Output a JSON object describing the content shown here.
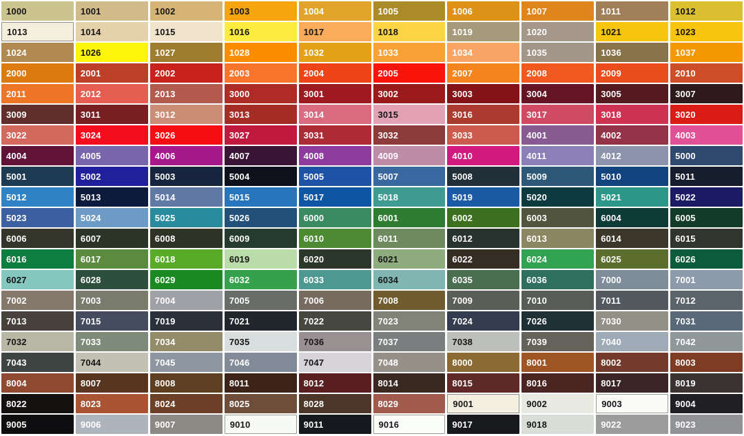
{
  "chart_data": {
    "type": "table",
    "title": "RAL colour chart",
    "columns": 10,
    "rows": 21,
    "cells": [
      {
        "c": "1000",
        "bg": "#CBC48E",
        "fg": "#161616"
      },
      {
        "c": "1001",
        "bg": "#D1BB8B",
        "fg": "#161616"
      },
      {
        "c": "1002",
        "bg": "#D6B476",
        "fg": "#161616"
      },
      {
        "c": "1003",
        "bg": "#F6A50F",
        "fg": "#161616"
      },
      {
        "c": "1004",
        "bg": "#E2A32B",
        "fg": "#FFFFFF"
      },
      {
        "c": "1005",
        "bg": "#AB8A28",
        "fg": "#FFFFFF"
      },
      {
        "c": "1006",
        "bg": "#DD9217",
        "fg": "#FFFFFF"
      },
      {
        "c": "1007",
        "bg": "#E0851B",
        "fg": "#FFFFFF"
      },
      {
        "c": "1011",
        "bg": "#A17F58",
        "fg": "#FFFFFF"
      },
      {
        "c": "1012",
        "bg": "#DCBE31",
        "fg": "#161616"
      },
      {
        "c": "1013",
        "bg": "#F4EFDC",
        "fg": "#161616",
        "bd": "#8F8F88"
      },
      {
        "c": "1014",
        "bg": "#E5D2AC",
        "fg": "#161616"
      },
      {
        "c": "1015",
        "bg": "#F0E4CD",
        "fg": "#161616"
      },
      {
        "c": "1016",
        "bg": "#FBEC3F",
        "fg": "#161616"
      },
      {
        "c": "1017",
        "bg": "#FAAC5A",
        "fg": "#161616"
      },
      {
        "c": "1018",
        "bg": "#FBD446",
        "fg": "#161616"
      },
      {
        "c": "1019",
        "bg": "#A59B7B",
        "fg": "#FFFFFF"
      },
      {
        "c": "1020",
        "bg": "#A6978B",
        "fg": "#FFFFFF"
      },
      {
        "c": "1021",
        "bg": "#F8C50E",
        "fg": "#161616"
      },
      {
        "c": "1023",
        "bg": "#F8C40D",
        "fg": "#161616"
      },
      {
        "c": "1024",
        "bg": "#B08A51",
        "fg": "#FFFFFF"
      },
      {
        "c": "1026",
        "bg": "#FCF40A",
        "fg": "#161616"
      },
      {
        "c": "1027",
        "bg": "#9E7D2F",
        "fg": "#FFFFFF"
      },
      {
        "c": "1028",
        "bg": "#FB8E00",
        "fg": "#FFFFFF"
      },
      {
        "c": "1032",
        "bg": "#E3A117",
        "fg": "#FFFFFF"
      },
      {
        "c": "1033",
        "bg": "#F8A136",
        "fg": "#FFFFFF"
      },
      {
        "c": "1034",
        "bg": "#F8A465",
        "fg": "#FFFFFF"
      },
      {
        "c": "1035",
        "bg": "#A29789",
        "fg": "#FFFFFF"
      },
      {
        "c": "1036",
        "bg": "#887349",
        "fg": "#FFFFFF"
      },
      {
        "c": "1037",
        "bg": "#F39801",
        "fg": "#FFFFFF"
      },
      {
        "c": "2000",
        "bg": "#DD7B10",
        "fg": "#FFFFFF"
      },
      {
        "c": "2001",
        "bg": "#BE3F28",
        "fg": "#FFFFFF"
      },
      {
        "c": "2002",
        "bg": "#C9211C",
        "fg": "#FFFFFF"
      },
      {
        "c": "2003",
        "bg": "#F8752C",
        "fg": "#FFFFFF"
      },
      {
        "c": "2004",
        "bg": "#EE4418",
        "fg": "#FFFFFF"
      },
      {
        "c": "2005",
        "bg": "#FA150C",
        "fg": "#FFFFFF"
      },
      {
        "c": "2007",
        "bg": "#F3841E",
        "fg": "#FFFFFF"
      },
      {
        "c": "2008",
        "bg": "#F05A20",
        "fg": "#FFFFFF"
      },
      {
        "c": "2009",
        "bg": "#EA4C1C",
        "fg": "#FFFFFF"
      },
      {
        "c": "2010",
        "bg": "#CE4F27",
        "fg": "#FFFFFF"
      },
      {
        "c": "2011",
        "bg": "#EE7626",
        "fg": "#FFFFFF"
      },
      {
        "c": "2012",
        "bg": "#E55E51",
        "fg": "#FFFFFF"
      },
      {
        "c": "2013",
        "bg": "#B15A4D",
        "fg": "#FFFFFF"
      },
      {
        "c": "3000",
        "bg": "#AF2B26",
        "fg": "#FFFFFF"
      },
      {
        "c": "3001",
        "bg": "#9E1A20",
        "fg": "#FFFFFF"
      },
      {
        "c": "3002",
        "bg": "#9B1B1C",
        "fg": "#FFFFFF"
      },
      {
        "c": "3003",
        "bg": "#841318",
        "fg": "#FFFFFF"
      },
      {
        "c": "3004",
        "bg": "#641425",
        "fg": "#FFFFFF"
      },
      {
        "c": "3005",
        "bg": "#541A20",
        "fg": "#FFFFFF"
      },
      {
        "c": "3007",
        "bg": "#2E191D",
        "fg": "#FFFFFF"
      },
      {
        "c": "3009",
        "bg": "#602F2C",
        "fg": "#FFFFFF"
      },
      {
        "c": "3011",
        "bg": "#781F22",
        "fg": "#FFFFFF"
      },
      {
        "c": "3012",
        "bg": "#CB8D76",
        "fg": "#FFFFFF"
      },
      {
        "c": "3013",
        "bg": "#A62C26",
        "fg": "#FFFFFF"
      },
      {
        "c": "3014",
        "bg": "#D96A80",
        "fg": "#FFFFFF"
      },
      {
        "c": "3015",
        "bg": "#E2A1B4",
        "fg": "#161616"
      },
      {
        "c": "3016",
        "bg": "#AA3B2E",
        "fg": "#FFFFFF"
      },
      {
        "c": "3017",
        "bg": "#D14A64",
        "fg": "#FFFFFF"
      },
      {
        "c": "3018",
        "bg": "#CF3351",
        "fg": "#FFFFFF"
      },
      {
        "c": "3020",
        "bg": "#DB1C16",
        "fg": "#FFFFFF"
      },
      {
        "c": "3022",
        "bg": "#D4685C",
        "fg": "#FFFFFF"
      },
      {
        "c": "3024",
        "bg": "#F30D1D",
        "fg": "#FFFFFF"
      },
      {
        "c": "3026",
        "bg": "#F40D12",
        "fg": "#FFFFFF"
      },
      {
        "c": "3027",
        "bg": "#C01A3F",
        "fg": "#FFFFFF"
      },
      {
        "c": "3031",
        "bg": "#AC2B35",
        "fg": "#FFFFFF"
      },
      {
        "c": "3032",
        "bg": "#8E3C3B",
        "fg": "#FFFFFF"
      },
      {
        "c": "3033",
        "bg": "#CB5C4D",
        "fg": "#FFFFFF"
      },
      {
        "c": "4001",
        "bg": "#875A92",
        "fg": "#FFFFFF"
      },
      {
        "c": "4002",
        "bg": "#943348",
        "fg": "#FFFFFF"
      },
      {
        "c": "4003",
        "bg": "#E05295",
        "fg": "#FFFFFF"
      },
      {
        "c": "4004",
        "bg": "#601237",
        "fg": "#FFFFFF"
      },
      {
        "c": "4005",
        "bg": "#7866AC",
        "fg": "#FFFFFF"
      },
      {
        "c": "4006",
        "bg": "#A8188D",
        "fg": "#FFFFFF"
      },
      {
        "c": "4007",
        "bg": "#3B1536",
        "fg": "#FFFFFF"
      },
      {
        "c": "4008",
        "bg": "#8D3C9E",
        "fg": "#FFFFFF"
      },
      {
        "c": "4009",
        "bg": "#BD8CA6",
        "fg": "#FFFFFF"
      },
      {
        "c": "4010",
        "bg": "#D2197E",
        "fg": "#FFFFFF"
      },
      {
        "c": "4011",
        "bg": "#8A7FB7",
        "fg": "#FFFFFF"
      },
      {
        "c": "4012",
        "bg": "#8C93AC",
        "fg": "#FFFFFF"
      },
      {
        "c": "5000",
        "bg": "#30496E",
        "fg": "#FFFFFF"
      },
      {
        "c": "5001",
        "bg": "#1D3B52",
        "fg": "#FFFFFF"
      },
      {
        "c": "5002",
        "bg": "#20209C",
        "fg": "#FFFFFF"
      },
      {
        "c": "5003",
        "bg": "#18253E",
        "fg": "#FFFFFF"
      },
      {
        "c": "5004",
        "bg": "#0E111C",
        "fg": "#FFFFFF"
      },
      {
        "c": "5005",
        "bg": "#1E52A5",
        "fg": "#FFFFFF"
      },
      {
        "c": "5007",
        "bg": "#3A68A0",
        "fg": "#FFFFFF"
      },
      {
        "c": "5008",
        "bg": "#212F38",
        "fg": "#FFFFFF"
      },
      {
        "c": "5009",
        "bg": "#2E5878",
        "fg": "#FFFFFF"
      },
      {
        "c": "5010",
        "bg": "#11437E",
        "fg": "#FFFFFF"
      },
      {
        "c": "5011",
        "bg": "#161D2C",
        "fg": "#FFFFFF"
      },
      {
        "c": "5012",
        "bg": "#2F83C4",
        "fg": "#FFFFFF"
      },
      {
        "c": "5013",
        "bg": "#0C1A3C",
        "fg": "#FFFFFF"
      },
      {
        "c": "5014",
        "bg": "#6079A5",
        "fg": "#FFFFFF"
      },
      {
        "c": "5015",
        "bg": "#2775BC",
        "fg": "#FFFFFF"
      },
      {
        "c": "5017",
        "bg": "#0E56A4",
        "fg": "#FFFFFF"
      },
      {
        "c": "5018",
        "bg": "#3F9C93",
        "fg": "#FFFFFF"
      },
      {
        "c": "5019",
        "bg": "#1B5BA6",
        "fg": "#FFFFFF"
      },
      {
        "c": "5020",
        "bg": "#0D3A3E",
        "fg": "#FFFFFF"
      },
      {
        "c": "5021",
        "bg": "#2C9789",
        "fg": "#FFFFFF"
      },
      {
        "c": "5022",
        "bg": "#1C1C66",
        "fg": "#FFFFFF"
      },
      {
        "c": "5023",
        "bg": "#3D60A0",
        "fg": "#FFFFFF"
      },
      {
        "c": "5024",
        "bg": "#6C9BC6",
        "fg": "#FFFFFF"
      },
      {
        "c": "5025",
        "bg": "#2A8A9E",
        "fg": "#FFFFFF"
      },
      {
        "c": "5026",
        "bg": "#215078",
        "fg": "#FFFFFF"
      },
      {
        "c": "6000",
        "bg": "#3C8A62",
        "fg": "#FFFFFF"
      },
      {
        "c": "6001",
        "bg": "#2E7D33",
        "fg": "#FFFFFF"
      },
      {
        "c": "6002",
        "bg": "#3D701F",
        "fg": "#FFFFFF"
      },
      {
        "c": "6003",
        "bg": "#52553E",
        "fg": "#FFFFFF"
      },
      {
        "c": "6004",
        "bg": "#0E3A38",
        "fg": "#FFFFFF"
      },
      {
        "c": "6005",
        "bg": "#123B29",
        "fg": "#FFFFFF"
      },
      {
        "c": "6006",
        "bg": "#34362C",
        "fg": "#FFFFFF"
      },
      {
        "c": "6007",
        "bg": "#2A3527",
        "fg": "#FFFFFF"
      },
      {
        "c": "6008",
        "bg": "#2F3326",
        "fg": "#FFFFFF"
      },
      {
        "c": "6009",
        "bg": "#263B30",
        "fg": "#FFFFFF"
      },
      {
        "c": "6010",
        "bg": "#4D8A32",
        "fg": "#FFFFFF"
      },
      {
        "c": "6011",
        "bg": "#6D8B5E",
        "fg": "#FFFFFF"
      },
      {
        "c": "6012",
        "bg": "#27332F",
        "fg": "#FFFFFF"
      },
      {
        "c": "6013",
        "bg": "#8C8763",
        "fg": "#FFFFFF"
      },
      {
        "c": "6014",
        "bg": "#3B382B",
        "fg": "#FFFFFF"
      },
      {
        "c": "6015",
        "bg": "#32352D",
        "fg": "#FFFFFF"
      },
      {
        "c": "6016",
        "bg": "#0E7D40",
        "fg": "#FFFFFF"
      },
      {
        "c": "6017",
        "bg": "#5B8B3E",
        "fg": "#FFFFFF"
      },
      {
        "c": "6018",
        "bg": "#58AC27",
        "fg": "#FFFFFF"
      },
      {
        "c": "6019",
        "bg": "#BADCA9",
        "fg": "#161616"
      },
      {
        "c": "6020",
        "bg": "#2B372B",
        "fg": "#FFFFFF"
      },
      {
        "c": "6021",
        "bg": "#8FAC7F",
        "fg": "#161616"
      },
      {
        "c": "6022",
        "bg": "#332D23",
        "fg": "#FFFFFF"
      },
      {
        "c": "6024",
        "bg": "#31A353",
        "fg": "#FFFFFF"
      },
      {
        "c": "6025",
        "bg": "#5B6E2E",
        "fg": "#FFFFFF"
      },
      {
        "c": "6026",
        "bg": "#0B5B3C",
        "fg": "#FFFFFF"
      },
      {
        "c": "6027",
        "bg": "#85C8BF",
        "fg": "#161616"
      },
      {
        "c": "6028",
        "bg": "#2D4F3B",
        "fg": "#FFFFFF"
      },
      {
        "c": "6029",
        "bg": "#1B8A23",
        "fg": "#FFFFFF"
      },
      {
        "c": "6032",
        "bg": "#36A14C",
        "fg": "#FFFFFF"
      },
      {
        "c": "6033",
        "bg": "#4D9890",
        "fg": "#FFFFFF"
      },
      {
        "c": "6034",
        "bg": "#80B6B1",
        "fg": "#161616"
      },
      {
        "c": "6035",
        "bg": "#4B6E50",
        "fg": "#FFFFFF"
      },
      {
        "c": "6036",
        "bg": "#2F6F5E",
        "fg": "#FFFFFF"
      },
      {
        "c": "7000",
        "bg": "#7F8C9A",
        "fg": "#FFFFFF"
      },
      {
        "c": "7001",
        "bg": "#8D9AA9",
        "fg": "#FFFFFF"
      },
      {
        "c": "7002",
        "bg": "#84796B",
        "fg": "#FFFFFF"
      },
      {
        "c": "7003",
        "bg": "#797B6C",
        "fg": "#FFFFFF"
      },
      {
        "c": "7004",
        "bg": "#9FA1A7",
        "fg": "#FFFFFF"
      },
      {
        "c": "7005",
        "bg": "#686D69",
        "fg": "#FFFFFF"
      },
      {
        "c": "7006",
        "bg": "#776B5F",
        "fg": "#FFFFFF"
      },
      {
        "c": "7008",
        "bg": "#705C2F",
        "fg": "#FFFFFF"
      },
      {
        "c": "7009",
        "bg": "#5C5F57",
        "fg": "#FFFFFF"
      },
      {
        "c": "7010",
        "bg": "#595D57",
        "fg": "#FFFFFF"
      },
      {
        "c": "7011",
        "bg": "#525A60",
        "fg": "#FFFFFF"
      },
      {
        "c": "7012",
        "bg": "#5C646B",
        "fg": "#FFFFFF"
      },
      {
        "c": "7013",
        "bg": "#47423B",
        "fg": "#FFFFFF"
      },
      {
        "c": "7015",
        "bg": "#444C5D",
        "fg": "#FFFFFF"
      },
      {
        "c": "7019",
        "bg": "#2A313A",
        "fg": "#FFFFFF"
      },
      {
        "c": "7021",
        "bg": "#1F262C",
        "fg": "#FFFFFF"
      },
      {
        "c": "7022",
        "bg": "#46473F",
        "fg": "#FFFFFF"
      },
      {
        "c": "7023",
        "bg": "#808376",
        "fg": "#FFFFFF"
      },
      {
        "c": "7024",
        "bg": "#343D4F",
        "fg": "#FFFFFF"
      },
      {
        "c": "7026",
        "bg": "#1F3134",
        "fg": "#FFFFFF"
      },
      {
        "c": "7030",
        "bg": "#929087",
        "fg": "#FFFFFF"
      },
      {
        "c": "7031",
        "bg": "#596977",
        "fg": "#FFFFFF"
      },
      {
        "c": "7032",
        "bg": "#B9B7A6",
        "fg": "#161616"
      },
      {
        "c": "7033",
        "bg": "#7F8B7A",
        "fg": "#FFFFFF"
      },
      {
        "c": "7034",
        "bg": "#948B69",
        "fg": "#FFFFFF"
      },
      {
        "c": "7035",
        "bg": "#D8DDDD",
        "fg": "#161616"
      },
      {
        "c": "7036",
        "bg": "#999091",
        "fg": "#161616"
      },
      {
        "c": "7037",
        "bg": "#7B7E7F",
        "fg": "#FFFFFF"
      },
      {
        "c": "7038",
        "bg": "#BDBFBB",
        "fg": "#161616"
      },
      {
        "c": "7039",
        "bg": "#65625B",
        "fg": "#FFFFFF"
      },
      {
        "c": "7040",
        "bg": "#9EAAB6",
        "fg": "#FFFFFF"
      },
      {
        "c": "7042",
        "bg": "#909799",
        "fg": "#FFFFFF"
      },
      {
        "c": "7043",
        "bg": "#3E4543",
        "fg": "#FFFFFF"
      },
      {
        "c": "7044",
        "bg": "#C3C1B3",
        "fg": "#161616"
      },
      {
        "c": "7045",
        "bg": "#8E97A1",
        "fg": "#FFFFFF"
      },
      {
        "c": "7046",
        "bg": "#808B97",
        "fg": "#FFFFFF"
      },
      {
        "c": "7047",
        "bg": "#D6D3D9",
        "fg": "#161616"
      },
      {
        "c": "7048",
        "bg": "#979088",
        "fg": "#FFFFFF"
      },
      {
        "c": "8000",
        "bg": "#8B6B33",
        "fg": "#FFFFFF"
      },
      {
        "c": "8001",
        "bg": "#A05525",
        "fg": "#FFFFFF"
      },
      {
        "c": "8002",
        "bg": "#743B2C",
        "fg": "#FFFFFF"
      },
      {
        "c": "8003",
        "bg": "#7F3C24",
        "fg": "#FFFFFF"
      },
      {
        "c": "8004",
        "bg": "#904A32",
        "fg": "#FFFFFF"
      },
      {
        "c": "8007",
        "bg": "#5A3620",
        "fg": "#FFFFFF"
      },
      {
        "c": "8008",
        "bg": "#5F3F21",
        "fg": "#FFFFFF"
      },
      {
        "c": "8011",
        "bg": "#3E2418",
        "fg": "#FFFFFF"
      },
      {
        "c": "8012",
        "bg": "#5A1F21",
        "fg": "#FFFFFF"
      },
      {
        "c": "8014",
        "bg": "#3A2921",
        "fg": "#FFFFFF"
      },
      {
        "c": "8015",
        "bg": "#5F2927",
        "fg": "#FFFFFF"
      },
      {
        "c": "8016",
        "bg": "#4B2521",
        "fg": "#FFFFFF"
      },
      {
        "c": "8017",
        "bg": "#3B2524",
        "fg": "#FFFFFF"
      },
      {
        "c": "8019",
        "bg": "#3C3434",
        "fg": "#FFFFFF"
      },
      {
        "c": "8022",
        "bg": "#151110",
        "fg": "#FFFFFF"
      },
      {
        "c": "8023",
        "bg": "#A95433",
        "fg": "#FFFFFF"
      },
      {
        "c": "8024",
        "bg": "#6C4128",
        "fg": "#FFFFFF"
      },
      {
        "c": "8025",
        "bg": "#6F4D3B",
        "fg": "#FFFFFF"
      },
      {
        "c": "8028",
        "bg": "#4B3627",
        "fg": "#FFFFFF"
      },
      {
        "c": "8029",
        "bg": "#A15B4D",
        "fg": "#FFFFFF"
      },
      {
        "c": "9001",
        "bg": "#F3F0E2",
        "fg": "#161616",
        "bd": "#8F8F88"
      },
      {
        "c": "9002",
        "bg": "#E8E9E1",
        "fg": "#161616"
      },
      {
        "c": "9003",
        "bg": "#FAFBF8",
        "fg": "#161616",
        "bd": "#9A9A96"
      },
      {
        "c": "9004",
        "bg": "#1F1F24",
        "fg": "#FFFFFF"
      },
      {
        "c": "9005",
        "bg": "#0F0F12",
        "fg": "#FFFFFF"
      },
      {
        "c": "9006",
        "bg": "#AEB4BC",
        "fg": "#FFFFFF"
      },
      {
        "c": "9007",
        "bg": "#8C8884",
        "fg": "#FFFFFF"
      },
      {
        "c": "9010",
        "bg": "#F8FAF5",
        "fg": "#161616",
        "bd": "#9A9A96"
      },
      {
        "c": "9011",
        "bg": "#15181D",
        "fg": "#FFFFFF"
      },
      {
        "c": "9016",
        "bg": "#FBFDFA",
        "fg": "#161616",
        "bd": "#9A9A96"
      },
      {
        "c": "9017",
        "bg": "#17191D",
        "fg": "#FFFFFF"
      },
      {
        "c": "9018",
        "bg": "#D8DED6",
        "fg": "#161616"
      },
      {
        "c": "9022",
        "bg": "#9C9C9C",
        "fg": "#FFFFFF"
      },
      {
        "c": "9023",
        "bg": "#909296",
        "fg": "#FFFFFF"
      }
    ]
  }
}
